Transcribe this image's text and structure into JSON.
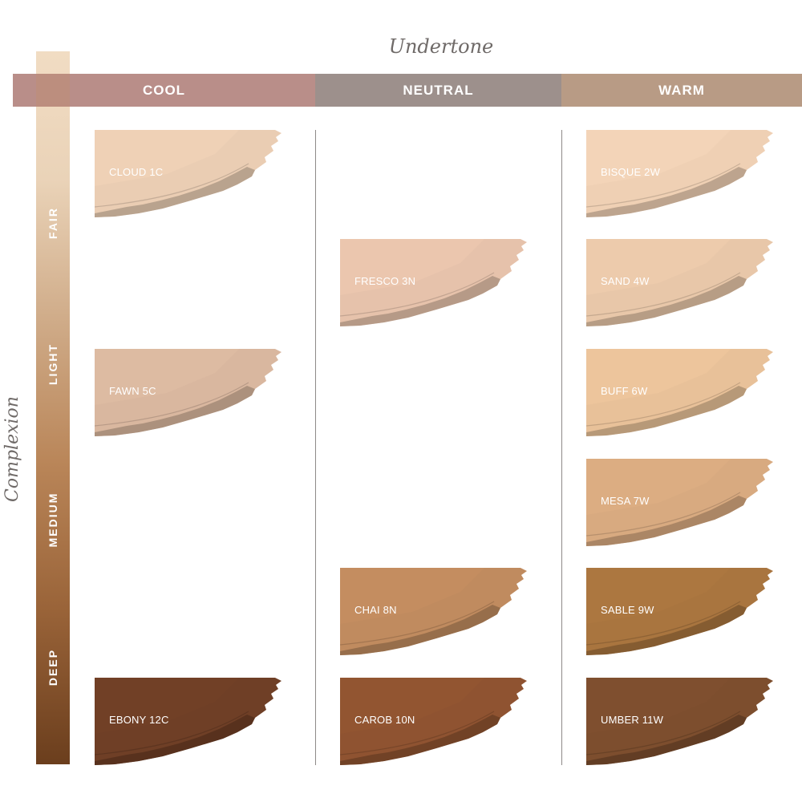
{
  "titles": {
    "undertone": "Undertone",
    "complexion": "Complexion"
  },
  "undertones": [
    {
      "label": "COOL",
      "color": "#b98e89"
    },
    {
      "label": "NEUTRAL",
      "color": "#9d908c"
    },
    {
      "label": "WARM",
      "color": "#b89b85"
    }
  ],
  "complexion_levels": [
    "FAIR",
    "LIGHT",
    "MEDIUM",
    "DEEP"
  ],
  "swatches": [
    {
      "name": "CLOUD 1C",
      "undertone": "COOL",
      "color": "#eacdb3"
    },
    {
      "name": "FAWN 5C",
      "undertone": "COOL",
      "color": "#d9b79f"
    },
    {
      "name": "EBONY 12C",
      "undertone": "COOL",
      "color": "#6f3f26"
    },
    {
      "name": "FRESCO 3N",
      "undertone": "NEUTRAL",
      "color": "#e6c2ab"
    },
    {
      "name": "CHAI 8N",
      "undertone": "NEUTRAL",
      "color": "#c08b5f"
    },
    {
      "name": "CAROB 10N",
      "undertone": "NEUTRAL",
      "color": "#8f5331"
    },
    {
      "name": "BISQUE 2W",
      "undertone": "WARM",
      "color": "#efd0b4"
    },
    {
      "name": "SAND 4W",
      "undertone": "WARM",
      "color": "#e8c7a9"
    },
    {
      "name": "BUFF 6W",
      "undertone": "WARM",
      "color": "#e8c199"
    },
    {
      "name": "MESA 7W",
      "undertone": "WARM",
      "color": "#d8aa80"
    },
    {
      "name": "SABLE 9W",
      "undertone": "WARM",
      "color": "#a9753f"
    },
    {
      "name": "UMBER 11W",
      "undertone": "WARM",
      "color": "#7d4e2e"
    }
  ]
}
